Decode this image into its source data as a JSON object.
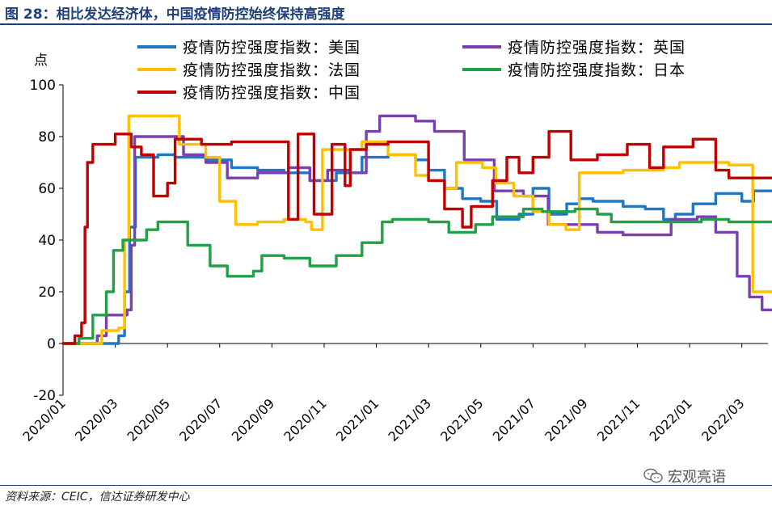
{
  "figure_title": "图 28：相比发达经济体，中国疫情防控始终保持高强度",
  "source": "资料来源：CEIC，信达证券研发中心",
  "watermark": "宏观亮语",
  "watermark_icon": "wechat-icon",
  "chart_data": {
    "type": "line",
    "ylabel": "点",
    "ylim": [
      -20,
      100
    ],
    "yticks": [
      -20,
      0,
      20,
      40,
      60,
      80,
      100
    ],
    "xticks": [
      "2020/01",
      "2020/03",
      "2020/05",
      "2020/07",
      "2020/09",
      "2020/11",
      "2021/01",
      "2021/03",
      "2021/05",
      "2021/07",
      "2021/09",
      "2021/11",
      "2022/01",
      "2022/03"
    ],
    "xrange_months": [
      "2020/01",
      "2022/04"
    ],
    "legend_position": "top",
    "grid": false,
    "series": [
      {
        "name": "疫情防控强度指数：美国",
        "color": "#1f77c4",
        "points": [
          [
            "2020/01/01",
            0
          ],
          [
            "2020/02/25",
            0
          ],
          [
            "2020/03/05",
            3
          ],
          [
            "2020/03/12",
            20
          ],
          [
            "2020/03/18",
            45
          ],
          [
            "2020/03/25",
            72
          ],
          [
            "2020/04/20",
            73
          ],
          [
            "2020/05/10",
            72
          ],
          [
            "2020/06/15",
            71
          ],
          [
            "2020/07/15",
            68
          ],
          [
            "2020/08/15",
            67
          ],
          [
            "2020/09/15",
            66
          ],
          [
            "2020/10/15",
            63
          ],
          [
            "2020/11/15",
            66
          ],
          [
            "2020/12/15",
            72
          ],
          [
            "2021/01/15",
            73
          ],
          [
            "2021/02/15",
            71
          ],
          [
            "2021/03/01",
            67
          ],
          [
            "2021/03/20",
            60
          ],
          [
            "2021/04/10",
            56
          ],
          [
            "2021/05/01",
            55
          ],
          [
            "2021/05/20",
            48
          ],
          [
            "2021/06/15",
            50
          ],
          [
            "2021/07/01",
            60
          ],
          [
            "2021/07/20",
            50
          ],
          [
            "2021/08/10",
            54
          ],
          [
            "2021/08/25",
            56
          ],
          [
            "2021/09/10",
            55
          ],
          [
            "2021/10/15",
            53
          ],
          [
            "2021/11/10",
            52
          ],
          [
            "2021/12/01",
            48
          ],
          [
            "2021/12/15",
            50
          ],
          [
            "2022/01/05",
            54
          ],
          [
            "2022/02/01",
            58
          ],
          [
            "2022/03/01",
            55
          ],
          [
            "2022/03/15",
            59
          ],
          [
            "2022/04/10",
            59
          ]
        ]
      },
      {
        "name": "疫情防控强度指数：英国",
        "color": "#7a3fb0",
        "points": [
          [
            "2020/01/01",
            0
          ],
          [
            "2020/02/10",
            3
          ],
          [
            "2020/02/20",
            11
          ],
          [
            "2020/03/15",
            13
          ],
          [
            "2020/03/20",
            38
          ],
          [
            "2020/03/24",
            80
          ],
          [
            "2020/05/10",
            80
          ],
          [
            "2020/05/20",
            73
          ],
          [
            "2020/06/15",
            70
          ],
          [
            "2020/07/10",
            64
          ],
          [
            "2020/08/15",
            66
          ],
          [
            "2020/09/20",
            68
          ],
          [
            "2020/10/15",
            63
          ],
          [
            "2020/11/05",
            67
          ],
          [
            "2020/12/01",
            66
          ],
          [
            "2020/12/20",
            82
          ],
          [
            "2021/01/05",
            88
          ],
          [
            "2021/02/15",
            86
          ],
          [
            "2021/03/08",
            82
          ],
          [
            "2021/04/12",
            71
          ],
          [
            "2021/05/17",
            59
          ],
          [
            "2021/06/20",
            57
          ],
          [
            "2021/07/19",
            46
          ],
          [
            "2021/08/15",
            46
          ],
          [
            "2021/09/15",
            43
          ],
          [
            "2021/10/15",
            42
          ],
          [
            "2021/11/15",
            42
          ],
          [
            "2021/12/10",
            48
          ],
          [
            "2022/01/10",
            49
          ],
          [
            "2022/02/01",
            43
          ],
          [
            "2022/02/24",
            26
          ],
          [
            "2022/03/10",
            18
          ],
          [
            "2022/03/25",
            13
          ],
          [
            "2022/04/10",
            13
          ]
        ]
      },
      {
        "name": "疫情防控强度指数：法国",
        "color": "#ffc000",
        "points": [
          [
            "2020/01/01",
            0
          ],
          [
            "2020/02/15",
            5
          ],
          [
            "2020/03/05",
            6
          ],
          [
            "2020/03/12",
            40
          ],
          [
            "2020/03/17",
            88
          ],
          [
            "2020/05/11",
            88
          ],
          [
            "2020/05/15",
            77
          ],
          [
            "2020/06/15",
            72
          ],
          [
            "2020/07/01",
            55
          ],
          [
            "2020/07/20",
            46
          ],
          [
            "2020/08/15",
            47
          ],
          [
            "2020/09/15",
            48
          ],
          [
            "2020/10/10",
            47
          ],
          [
            "2020/10/17",
            44
          ],
          [
            "2020/10/30",
            75
          ],
          [
            "2020/12/15",
            78
          ],
          [
            "2021/01/15",
            73
          ],
          [
            "2021/02/15",
            65
          ],
          [
            "2021/03/01",
            63
          ],
          [
            "2021/03/20",
            60
          ],
          [
            "2021/04/03",
            70
          ],
          [
            "2021/05/03",
            68
          ],
          [
            "2021/05/19",
            62
          ],
          [
            "2021/06/09",
            57
          ],
          [
            "2021/07/01",
            51
          ],
          [
            "2021/07/20",
            46
          ],
          [
            "2021/08/09",
            44
          ],
          [
            "2021/08/25",
            66
          ],
          [
            "2021/10/15",
            67
          ],
          [
            "2021/12/01",
            68
          ],
          [
            "2021/12/20",
            70
          ],
          [
            "2022/01/20",
            70
          ],
          [
            "2022/02/15",
            69
          ],
          [
            "2022/03/14",
            20
          ],
          [
            "2022/04/10",
            19
          ]
        ]
      },
      {
        "name": "疫情防控强度指数：日本",
        "color": "#22a045",
        "points": [
          [
            "2020/01/01",
            0
          ],
          [
            "2020/01/20",
            2
          ],
          [
            "2020/02/05",
            11
          ],
          [
            "2020/02/20",
            20
          ],
          [
            "2020/02/28",
            36
          ],
          [
            "2020/03/10",
            40
          ],
          [
            "2020/04/07",
            44
          ],
          [
            "2020/04/20",
            47
          ],
          [
            "2020/05/25",
            38
          ],
          [
            "2020/06/20",
            30
          ],
          [
            "2020/07/10",
            26
          ],
          [
            "2020/08/10",
            28
          ],
          [
            "2020/08/20",
            34
          ],
          [
            "2020/09/15",
            33
          ],
          [
            "2020/10/15",
            30
          ],
          [
            "2020/11/15",
            34
          ],
          [
            "2020/12/15",
            39
          ],
          [
            "2021/01/08",
            47
          ],
          [
            "2021/01/20",
            48
          ],
          [
            "2021/02/15",
            48
          ],
          [
            "2021/03/01",
            47
          ],
          [
            "2021/03/25",
            43
          ],
          [
            "2021/04/25",
            46
          ],
          [
            "2021/05/15",
            49
          ],
          [
            "2021/06/20",
            52
          ],
          [
            "2021/07/12",
            51
          ],
          [
            "2021/08/20",
            52
          ],
          [
            "2021/09/15",
            50
          ],
          [
            "2021/10/01",
            47
          ],
          [
            "2021/11/15",
            47
          ],
          [
            "2021/12/15",
            47
          ],
          [
            "2022/01/15",
            48
          ],
          [
            "2022/02/15",
            47
          ],
          [
            "2022/04/10",
            47
          ]
        ]
      },
      {
        "name": "疫情防控强度指数：中国",
        "color": "#c00000",
        "points": [
          [
            "2020/01/01",
            0
          ],
          [
            "2020/01/15",
            3
          ],
          [
            "2020/01/23",
            8
          ],
          [
            "2020/01/27",
            45
          ],
          [
            "2020/01/30",
            70
          ],
          [
            "2020/02/05",
            77
          ],
          [
            "2020/03/01",
            81
          ],
          [
            "2020/03/20",
            76
          ],
          [
            "2020/04/01",
            73
          ],
          [
            "2020/04/15",
            57
          ],
          [
            "2020/05/01",
            62
          ],
          [
            "2020/05/10",
            79
          ],
          [
            "2020/06/10",
            77
          ],
          [
            "2020/07/15",
            78
          ],
          [
            "2020/08/15",
            78
          ],
          [
            "2020/09/20",
            48
          ],
          [
            "2020/10/01",
            81
          ],
          [
            "2020/10/20",
            50
          ],
          [
            "2020/11/10",
            77
          ],
          [
            "2020/11/25",
            61
          ],
          [
            "2020/12/01",
            75
          ],
          [
            "2020/12/20",
            77
          ],
          [
            "2021/01/15",
            78
          ],
          [
            "2021/02/15",
            78
          ],
          [
            "2021/03/01",
            63
          ],
          [
            "2021/03/20",
            52
          ],
          [
            "2021/04/10",
            45
          ],
          [
            "2021/04/20",
            53
          ],
          [
            "2021/05/15",
            63
          ],
          [
            "2021/06/01",
            72
          ],
          [
            "2021/06/15",
            66
          ],
          [
            "2021/07/01",
            72
          ],
          [
            "2021/07/20",
            82
          ],
          [
            "2021/08/15",
            71
          ],
          [
            "2021/09/15",
            73
          ],
          [
            "2021/10/20",
            77
          ],
          [
            "2021/11/15",
            68
          ],
          [
            "2021/12/01",
            76
          ],
          [
            "2022/01/05",
            79
          ],
          [
            "2022/02/01",
            67
          ],
          [
            "2022/02/15",
            64
          ],
          [
            "2022/03/15",
            64
          ],
          [
            "2022/04/10",
            64
          ]
        ]
      }
    ]
  }
}
